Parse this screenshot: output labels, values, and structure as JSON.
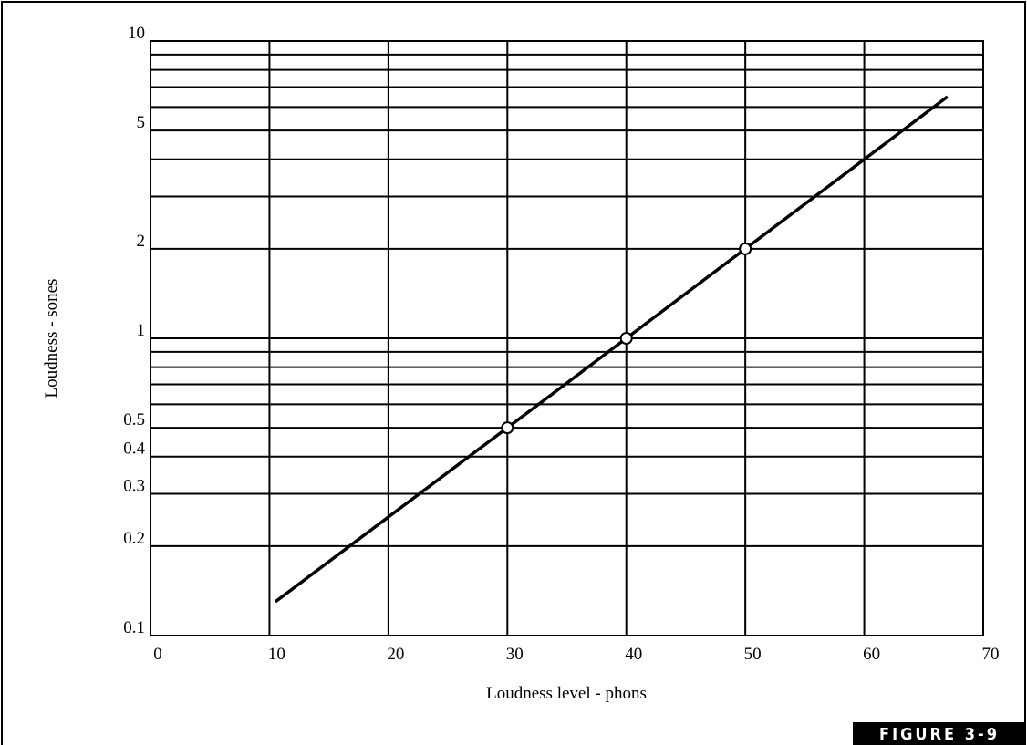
{
  "chart_data": {
    "type": "line",
    "xlabel": "Loudness level - phons",
    "ylabel": "Loudness - sones",
    "annotation": "FIGURE 3-9",
    "series": [
      {
        "x": [
          10.5,
          30,
          40,
          50,
          67
        ],
        "values": [
          0.13,
          0.5,
          1,
          2,
          6.5
        ],
        "color": "#000000"
      },
      {
        "x": [
          30,
          40,
          50
        ],
        "values": [
          0.5,
          1,
          2
        ],
        "color": "#000000",
        "marker": "circle"
      }
    ],
    "xlim": [
      0,
      70
    ],
    "xticks": [
      0,
      10,
      20,
      30,
      40,
      50,
      60,
      70
    ],
    "ylim": [
      0.1,
      10
    ],
    "yscale": "log",
    "yticks": [
      0.1,
      0.2,
      0.3,
      0.4,
      0.5,
      1,
      2,
      5,
      10
    ],
    "minor_yticks": [
      0.6,
      0.7,
      0.8,
      0.9,
      3,
      4,
      6,
      7,
      8,
      9
    ],
    "grid": true
  }
}
